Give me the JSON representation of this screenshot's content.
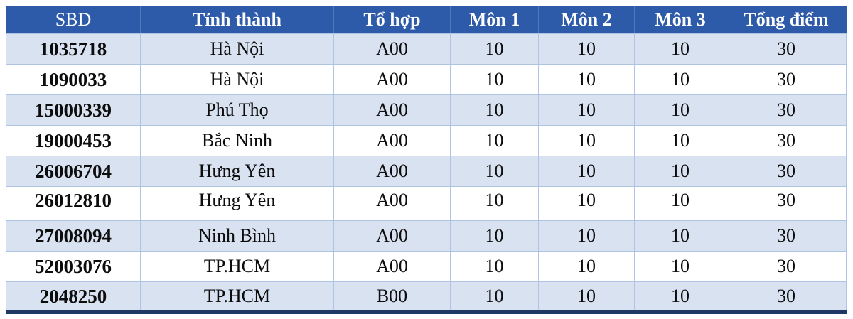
{
  "table": {
    "columns": [
      {
        "key": "sbd",
        "label": "SBD"
      },
      {
        "key": "tinh-thanh",
        "label": "Tỉnh thành"
      },
      {
        "key": "to-hop",
        "label": "Tổ hợp"
      },
      {
        "key": "mon-1",
        "label": "Môn 1"
      },
      {
        "key": "mon-2",
        "label": "Môn 2"
      },
      {
        "key": "mon-3",
        "label": "Môn 3"
      },
      {
        "key": "tong-diem",
        "label": "Tổng điểm"
      }
    ],
    "rows": [
      [
        "1035718",
        "Hà Nội",
        "A00",
        "10",
        "10",
        "10",
        "30"
      ],
      [
        "1090033",
        "Hà Nội",
        "A00",
        "10",
        "10",
        "10",
        "30"
      ],
      [
        "15000339",
        "Phú Thọ",
        "A00",
        "10",
        "10",
        "10",
        "30"
      ],
      [
        "19000453",
        "Bắc Ninh",
        "A00",
        "10",
        "10",
        "10",
        "30"
      ],
      [
        "26006704",
        "Hưng Yên",
        "A00",
        "10",
        "10",
        "10",
        "30"
      ],
      [
        "26012810",
        "Hưng Yên",
        "A00",
        "10",
        "10",
        "10",
        "30"
      ],
      [
        "27008094",
        "Ninh Bình",
        "A00",
        "10",
        "10",
        "10",
        "30"
      ],
      [
        "52003076",
        "TP.HCM",
        "A00",
        "10",
        "10",
        "10",
        "30"
      ],
      [
        "2048250",
        "TP.HCM",
        "B00",
        "10",
        "10",
        "10",
        "30"
      ]
    ]
  },
  "colors": {
    "header_bg": "#2e5ba9",
    "header_text": "#ffffff",
    "row_shaded_bg": "#d9e2f1",
    "row_white_bg": "#ffffff",
    "border": "#aec4e2",
    "bottom_bar": "#1f3864",
    "text": "#0d0d0d"
  }
}
